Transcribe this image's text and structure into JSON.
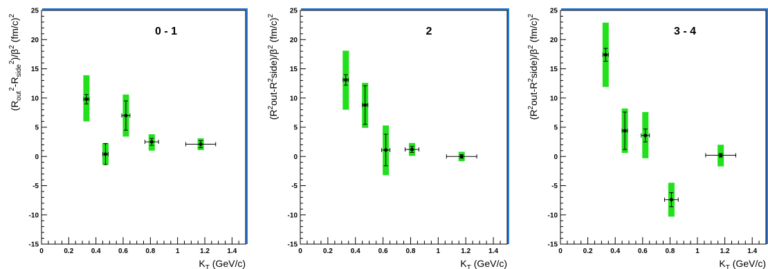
{
  "chart_data": [
    {
      "type": "scatter",
      "title": "0 - 1",
      "xlabel": "K_T (GeV/c)",
      "ylabel": "(R_out^2-R_side^2)/β^2 (fm/c)^2",
      "xlim": [
        0,
        1.5
      ],
      "ylim": [
        -15,
        25
      ],
      "xticks": [
        "0",
        "0.2",
        "0.4",
        "0.6",
        "0.8",
        "1",
        "1.2",
        "1.4"
      ],
      "yticks": [
        "-15",
        "-10",
        "-5",
        "0",
        "5",
        "10",
        "15",
        "20",
        "25"
      ],
      "grid": false,
      "points": [
        {
          "x": 0.33,
          "y": 9.8,
          "xerr": 0.02,
          "yerr": 0.8,
          "sys_low": 6.0,
          "sys_high": 13.9
        },
        {
          "x": 0.47,
          "y": 0.4,
          "xerr": 0.02,
          "yerr": 1.8,
          "sys_low": -1.4,
          "sys_high": 2.3
        },
        {
          "x": 0.62,
          "y": 7.0,
          "xerr": 0.03,
          "yerr": 2.5,
          "sys_low": 3.4,
          "sys_high": 10.6
        },
        {
          "x": 0.81,
          "y": 2.5,
          "xerr": 0.05,
          "yerr": 0.6,
          "sys_low": 1.0,
          "sys_high": 3.8
        },
        {
          "x": 1.17,
          "y": 2.1,
          "xerr": 0.11,
          "yerr": 0.6,
          "sys_low": 1.1,
          "sys_high": 3.1
        }
      ]
    },
    {
      "type": "scatter",
      "title": "2",
      "xlabel": "K_T (GeV/c)",
      "ylabel": "(R^2out-R^2side)/β^2 (fm/c)^2",
      "xlim": [
        0,
        1.5
      ],
      "ylim": [
        -15,
        25
      ],
      "xticks": [
        "0",
        "0.2",
        "0.4",
        "0.6",
        "0.8",
        "1",
        "1.2",
        "1.4"
      ],
      "yticks": [
        "-15",
        "-10",
        "-5",
        "0",
        "5",
        "10",
        "15",
        "20",
        "25"
      ],
      "grid": false,
      "points": [
        {
          "x": 0.33,
          "y": 13.1,
          "xerr": 0.02,
          "yerr": 0.9,
          "sys_low": 8.0,
          "sys_high": 18.1
        },
        {
          "x": 0.47,
          "y": 8.8,
          "xerr": 0.02,
          "yerr": 3.3,
          "sys_low": 4.9,
          "sys_high": 12.6
        },
        {
          "x": 0.62,
          "y": 1.1,
          "xerr": 0.03,
          "yerr": 2.7,
          "sys_low": -3.2,
          "sys_high": 5.3
        },
        {
          "x": 0.81,
          "y": 1.2,
          "xerr": 0.05,
          "yerr": 0.5,
          "sys_low": 0.1,
          "sys_high": 2.3
        },
        {
          "x": 1.17,
          "y": 0.0,
          "xerr": 0.11,
          "yerr": 0.3,
          "sys_low": -0.8,
          "sys_high": 0.8
        }
      ]
    },
    {
      "type": "scatter",
      "title": "3 - 4",
      "xlabel": "K_T (GeV/c)",
      "ylabel": "(R^2out-R^2side)/β^2 (fm/c)^2",
      "xlim": [
        0,
        1.5
      ],
      "ylim": [
        -15,
        25
      ],
      "xticks": [
        "0",
        "0.2",
        "0.4",
        "0.6",
        "0.8",
        "1",
        "1.2",
        "1.4"
      ],
      "yticks": [
        "-15",
        "-10",
        "-5",
        "0",
        "5",
        "10",
        "15",
        "20",
        "25"
      ],
      "grid": false,
      "points": [
        {
          "x": 0.33,
          "y": 17.4,
          "xerr": 0.02,
          "yerr": 1.1,
          "sys_low": 11.9,
          "sys_high": 22.9
        },
        {
          "x": 0.47,
          "y": 4.4,
          "xerr": 0.02,
          "yerr": 3.2,
          "sys_low": 0.6,
          "sys_high": 8.2
        },
        {
          "x": 0.62,
          "y": 3.6,
          "xerr": 0.03,
          "yerr": 1.1,
          "sys_low": -0.3,
          "sys_high": 7.6
        },
        {
          "x": 0.81,
          "y": -7.4,
          "xerr": 0.05,
          "yerr": 1.2,
          "sys_low": -10.3,
          "sys_high": -4.5
        },
        {
          "x": 1.17,
          "y": 0.2,
          "xerr": 0.11,
          "yerr": 0.3,
          "sys_low": -1.7,
          "sys_high": 2.0
        }
      ]
    }
  ]
}
